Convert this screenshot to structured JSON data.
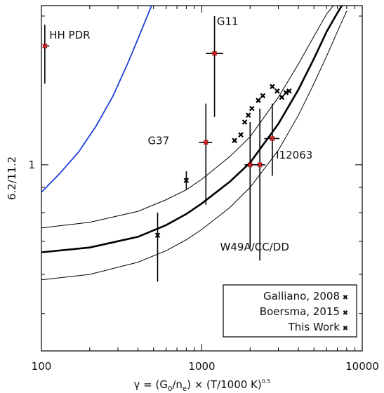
{
  "chart_data": {
    "type": "scatter",
    "title": "",
    "xlabel": {
      "prefix": "γ = (G",
      "sub1": "0",
      "mid": "/n",
      "sub2": "e",
      "tail": ") × (T/1000 K)",
      "sup": "0.5"
    },
    "ylabel": "6.2/11.2",
    "x_scale": "log",
    "y_scale": "log",
    "xlim": [
      100,
      10000
    ],
    "ylim": [
      0.42,
      2.1
    ],
    "x_ticks": [
      {
        "value": 100,
        "label": "100"
      },
      {
        "value": 1000,
        "label": "1000"
      },
      {
        "value": 10000,
        "label": "10000"
      }
    ],
    "y_ticks": [
      {
        "value": 1,
        "label": "1"
      }
    ],
    "grid": false,
    "legend_position": "bottom-right",
    "legend": [
      {
        "label": "Galliano, 2008",
        "color": "#000000",
        "marker": "✖"
      },
      {
        "label": "Boersma, 2015",
        "color": "#1f3fd6",
        "marker": "✖"
      },
      {
        "label": "This Work",
        "color": "#e02020",
        "marker": "✖"
      }
    ],
    "curves": [
      {
        "name": "Boersma, 2015",
        "color": "#1f3fd6",
        "width": 1.8,
        "x": [
          100,
          130,
          170,
          220,
          280,
          350,
          420,
          480,
          520
        ],
        "y": [
          0.88,
          0.96,
          1.06,
          1.2,
          1.38,
          1.62,
          1.87,
          2.08,
          2.2
        ]
      },
      {
        "name": "fit",
        "color": "#000000",
        "width": 2.6,
        "x": [
          100,
          200,
          400,
          600,
          800,
          1000,
          1500,
          2000,
          3000,
          4000,
          5000,
          6000,
          7000,
          7800
        ],
        "y": [
          0.665,
          0.68,
          0.715,
          0.755,
          0.795,
          0.835,
          0.925,
          1.01,
          1.21,
          1.42,
          1.64,
          1.86,
          2.03,
          2.15
        ]
      },
      {
        "name": "fit-upper",
        "color": "#000000",
        "width": 1,
        "x": [
          100,
          200,
          400,
          600,
          800,
          1000,
          1500,
          2000,
          3000,
          4000,
          5000,
          6000,
          7000,
          7600
        ],
        "y": [
          0.745,
          0.765,
          0.805,
          0.85,
          0.89,
          0.935,
          1.04,
          1.14,
          1.37,
          1.6,
          1.82,
          2.02,
          2.15,
          2.2
        ]
      },
      {
        "name": "fit-lower",
        "color": "#000000",
        "width": 1,
        "x": [
          100,
          200,
          400,
          600,
          800,
          1000,
          1500,
          2000,
          3000,
          4000,
          5000,
          6000,
          7000,
          8000
        ],
        "y": [
          0.585,
          0.6,
          0.635,
          0.67,
          0.705,
          0.74,
          0.82,
          0.9,
          1.07,
          1.26,
          1.46,
          1.66,
          1.86,
          2.05
        ]
      }
    ],
    "series": [
      {
        "name": "Galliano, 2008",
        "color": "#000000",
        "points": [
          {
            "x": 530,
            "y": 0.72,
            "ylo": 0.58,
            "yhi": 0.8
          },
          {
            "x": 800,
            "y": 0.93,
            "ylo": 0.89,
            "yhi": 0.97
          },
          {
            "x": 1600,
            "y": 1.12
          },
          {
            "x": 1750,
            "y": 1.15
          },
          {
            "x": 1850,
            "y": 1.22
          },
          {
            "x": 1950,
            "y": 1.26
          },
          {
            "x": 2050,
            "y": 1.3
          },
          {
            "x": 2250,
            "y": 1.35
          },
          {
            "x": 2400,
            "y": 1.38
          },
          {
            "x": 2750,
            "y": 1.44
          },
          {
            "x": 2950,
            "y": 1.41
          },
          {
            "x": 3150,
            "y": 1.37
          },
          {
            "x": 3350,
            "y": 1.4
          },
          {
            "x": 3500,
            "y": 1.41
          }
        ]
      },
      {
        "name": "This Work",
        "color": "#e02020",
        "points": [
          {
            "x": 105,
            "y": 1.74,
            "ylo": 1.46,
            "yhi": 1.92,
            "xlo": 102,
            "xhi": 112
          },
          {
            "x": 1200,
            "y": 1.68,
            "ylo": 1.25,
            "yhi": 2.0,
            "xlo": 1060,
            "xhi": 1360
          },
          {
            "x": 1060,
            "y": 1.11,
            "ylo": 0.83,
            "yhi": 1.33,
            "xlo": 960,
            "xhi": 1160
          },
          {
            "x": 2000,
            "y": 1.0,
            "ylo": 0.68,
            "yhi": 1.22,
            "xlo": 1850,
            "xhi": 2150
          },
          {
            "x": 2300,
            "y": 1.0,
            "ylo": 0.64,
            "yhi": 1.3,
            "xlo": 2120,
            "xhi": 2480
          },
          {
            "x": 2750,
            "y": 1.13,
            "ylo": 0.95,
            "yhi": 1.33,
            "xlo": 2450,
            "xhi": 3050
          }
        ]
      }
    ],
    "annotations": [
      {
        "text": "HH PDR",
        "x": 112,
        "y": 1.8
      },
      {
        "text": "G11",
        "x": 1240,
        "y": 1.92
      },
      {
        "text": "G37",
        "x": 460,
        "y": 1.1
      },
      {
        "text": "I12063",
        "x": 2900,
        "y": 1.03
      },
      {
        "text": "W49A/CC/DD",
        "x": 1300,
        "y": 0.67
      }
    ]
  }
}
